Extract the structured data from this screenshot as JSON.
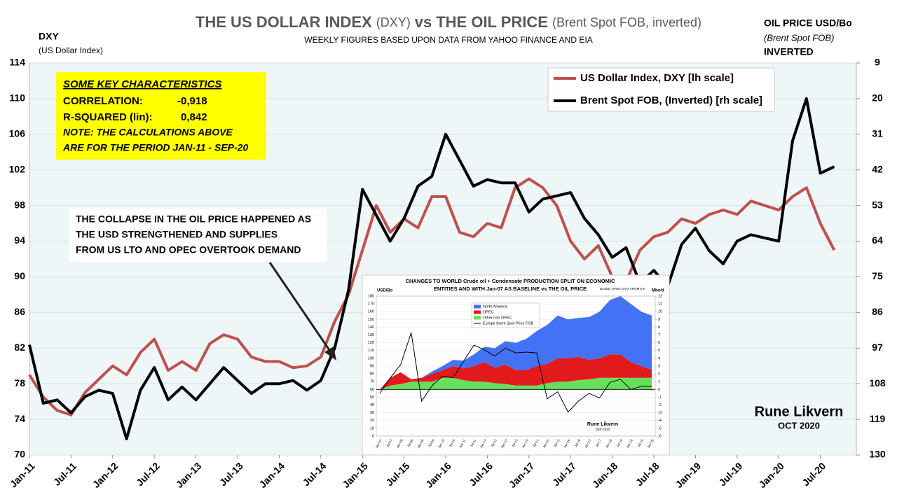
{
  "chart_data": [
    {
      "type": "line",
      "title": [
        "THE US DOLLAR INDEX",
        "(DXY)",
        "vs",
        "THE OIL PRICE",
        "(Brent Spot FOB, inverted)"
      ],
      "subtitle": "WEEKLY FIGURES BASED UPON DATA FROM YAHOO FINANCE AND EIA",
      "y_label": [
        "DXY",
        "(US Dollar Index)"
      ],
      "y2_label": [
        "OIL PRICE USD/Bo",
        "(Brent Spot FOB)",
        "INVERTED"
      ],
      "categories": [
        "Jan-11",
        null,
        null,
        "Jul-11",
        null,
        null,
        "Jan-12",
        null,
        null,
        "Jul-12",
        null,
        null,
        "Jan-13",
        null,
        null,
        "Jul-13",
        null,
        null,
        "Jan-14",
        null,
        null,
        "Jul-14",
        null,
        null,
        "Jan-15",
        null,
        null,
        "Jul-15",
        null,
        null,
        "Jan-16",
        null,
        null,
        "Jul-16",
        null,
        null,
        "Jan-17",
        null,
        null,
        "Jul-17",
        null,
        null,
        "Jan-18",
        null,
        null,
        "Jul-18",
        null,
        null,
        "Jan-19",
        null,
        null,
        "Jul-19",
        null,
        null,
        "Jan-20",
        null,
        null,
        "Jul-20",
        null
      ],
      "series": [
        {
          "name": "US Dollar Index, DXY    [lh scale]",
          "color": "#c0504d",
          "values": [
            79,
            76.5,
            75,
            74.5,
            77,
            78.5,
            80,
            79,
            81.5,
            83,
            79.5,
            80.5,
            79.5,
            82.5,
            83.5,
            83,
            81,
            80.5,
            80.5,
            79.8,
            80,
            81,
            85,
            88,
            93,
            98,
            95,
            96.5,
            95.5,
            99,
            99,
            95,
            94.5,
            96,
            95.5,
            100,
            101,
            100,
            98,
            94,
            92,
            93.5,
            90,
            89.5,
            93,
            94.5,
            95,
            96.5,
            96,
            97,
            97.5,
            97,
            98.5,
            98,
            97.5,
            99,
            100,
            96,
            93
          ]
        },
        {
          "name": "Brent Spot FOB, (Inverted) [rh scale]",
          "color": "#000000",
          "axis": "y2",
          "values": [
            96,
            114,
            113,
            117,
            112,
            110,
            111,
            125,
            110,
            103,
            113,
            109,
            113,
            108,
            103,
            107,
            111,
            108,
            108,
            107,
            110,
            107,
            97,
            79,
            48,
            56,
            64,
            57,
            47,
            44,
            31,
            39,
            47,
            45,
            46,
            46,
            55,
            51,
            50,
            49,
            57,
            62,
            69,
            66,
            77,
            73,
            78,
            65,
            60,
            67,
            71,
            64,
            62,
            63,
            64,
            33,
            20,
            43,
            41
          ]
        }
      ],
      "ylim": [
        70,
        114
      ],
      "yticks": [
        70,
        74,
        78,
        82,
        86,
        90,
        94,
        98,
        102,
        106,
        110,
        114
      ],
      "y2lim": [
        130,
        9
      ],
      "y2ticks": [
        130,
        119,
        108,
        97,
        86,
        75,
        64,
        53,
        42,
        31,
        20,
        9
      ],
      "grid": true,
      "legend": "upper right",
      "key_box": {
        "heading": "SOME KEY CHARACTERISTICS",
        "correlation_label": "CORRELATION:",
        "correlation": "-0,918",
        "r_squared_label": "R-SQUARED (lin):",
        "r_squared": "0,842",
        "note": [
          "NOTE: THE CALCULATIONS ABOVE",
          "ARE FOR THE PERIOD JAN-11 - SEP-20"
        ]
      },
      "callout": [
        "THE COLLAPSE IN THE OIL PRICE HAPPENED AS",
        "THE USD STRENGTHENED AND SUPPLIES",
        "FROM US LTO AND OPEC OVERTOOK DEMAND"
      ],
      "author": "Rune Likvern",
      "date": "OCT 2020"
    },
    {
      "type": "area",
      "title": [
        "CHANGES TO WORLD Crude oil + Condensate PRODUCTION SPLIT ON ECONOMIC",
        "ENTITIES AND WITH Jan-07 AS BASELINE vs THE OIL PRICE"
      ],
      "subtitle": "BASED UPON DATA FROM EIA",
      "y_label": "USD/Bo",
      "y2_label": "Mbo/d",
      "categories": [
        "Jan-07",
        "Jul-07",
        "Jan-08",
        "Jul-08",
        "Jan-09",
        "Jul-09",
        "Jan-10",
        "Jul-10",
        "Jan-11",
        "Jul-11",
        "Jan-12",
        "Jul-12",
        "Jan-13",
        "Jul-13",
        "Jan-14",
        "Jul-14",
        "Jan-15",
        "Jul-15",
        "Jan-16",
        "Jul-16",
        "Jan-17",
        "Jul-17",
        "Jan-18",
        "Jul-18",
        "Jan-19",
        "Jul-19",
        "Jan-20"
      ],
      "series": [
        {
          "name": "North America",
          "color": "#4472f4",
          "axis": "y2",
          "values": [
            0,
            0,
            0,
            0,
            0,
            0.3,
            0.5,
            0.8,
            1,
            1.5,
            2,
            2.5,
            3,
            3.5,
            4,
            4.5,
            5,
            5.5,
            5,
            5,
            5.5,
            6,
            7,
            7.5,
            7.5,
            7,
            7
          ]
        },
        {
          "name": "OPEC",
          "color": "#e31a1c",
          "axis": "y2",
          "values": [
            0,
            1,
            1.5,
            0.3,
            0.5,
            1,
            1,
            1.5,
            1.5,
            2,
            2.5,
            2,
            2.5,
            2,
            2,
            2.5,
            2.5,
            3,
            3,
            3,
            2.5,
            2.5,
            3,
            3,
            2,
            1.5,
            1
          ]
        },
        {
          "name": "Other non OPEC",
          "color": "#66e05a",
          "axis": "y2",
          "values": [
            0,
            0.5,
            0.7,
            1,
            1,
            1,
            1.5,
            1.5,
            1.2,
            1,
            1,
            0.8,
            0.7,
            0.5,
            0.5,
            0.5,
            0.8,
            1,
            1,
            1.2,
            1.3,
            1.5,
            1.5,
            1.5,
            1.5,
            1.5,
            1.5
          ]
        },
        {
          "name": "Europe Brent Spot Price FOB",
          "color": "#000000",
          "type": "line",
          "values": [
            55,
            75,
            92,
            133,
            45,
            65,
            77,
            75,
            96,
            117,
            111,
            103,
            113,
            107,
            108,
            107,
            48,
            57,
            31,
            45,
            55,
            49,
            69,
            73,
            60,
            64,
            64
          ]
        }
      ],
      "ylim": [
        0,
        180
      ],
      "yticks": [
        0,
        10,
        20,
        30,
        40,
        50,
        60,
        70,
        80,
        90,
        100,
        110,
        120,
        130,
        140,
        150,
        160,
        170,
        180
      ],
      "y2lim": [
        -6,
        12
      ],
      "y2ticks": [
        -6,
        -5,
        -4,
        -3,
        -2,
        -1,
        0,
        1,
        2,
        3,
        4,
        5,
        6,
        7,
        8,
        9,
        10,
        11,
        12
      ],
      "grid": true,
      "author": "Rune Likvern",
      "date": "SEP 2020"
    }
  ]
}
